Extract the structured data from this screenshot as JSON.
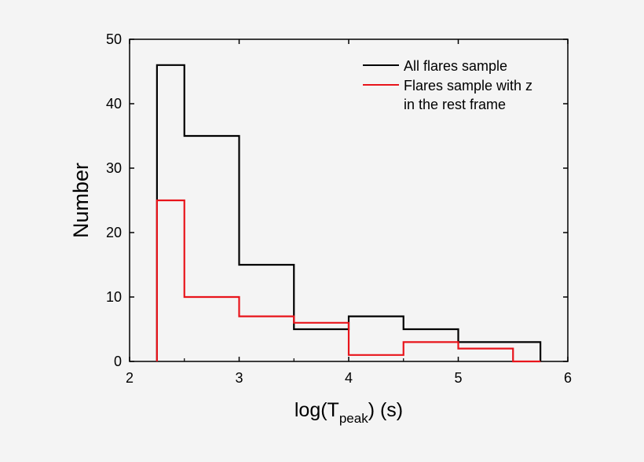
{
  "chart_data": {
    "type": "step-histogram",
    "xlabel": "log(T",
    "xlabel_sub": "peak",
    "xlabel_suffix": ") (s)",
    "ylabel": "Number",
    "xlim": [
      2,
      6
    ],
    "ylim": [
      0,
      50
    ],
    "xticks": [
      "2",
      "3",
      "4",
      "5",
      "6"
    ],
    "yticks": [
      "0",
      "10",
      "20",
      "30",
      "40",
      "50"
    ],
    "grid": false,
    "legend_position": "top-right",
    "bin_edges": [
      2.25,
      2.5,
      3,
      3.5,
      4,
      4.5,
      5,
      5.5,
      5.75
    ],
    "series": [
      {
        "name": "All flares sample",
        "color": "#000000",
        "values": [
          46,
          35,
          15,
          5,
          7,
          5,
          3,
          3
        ]
      },
      {
        "name": "Flares sample with z",
        "name_line2": "in the rest frame",
        "color": "#e8141b",
        "values": [
          25,
          10,
          7,
          6,
          1,
          3,
          2,
          0
        ]
      }
    ]
  }
}
